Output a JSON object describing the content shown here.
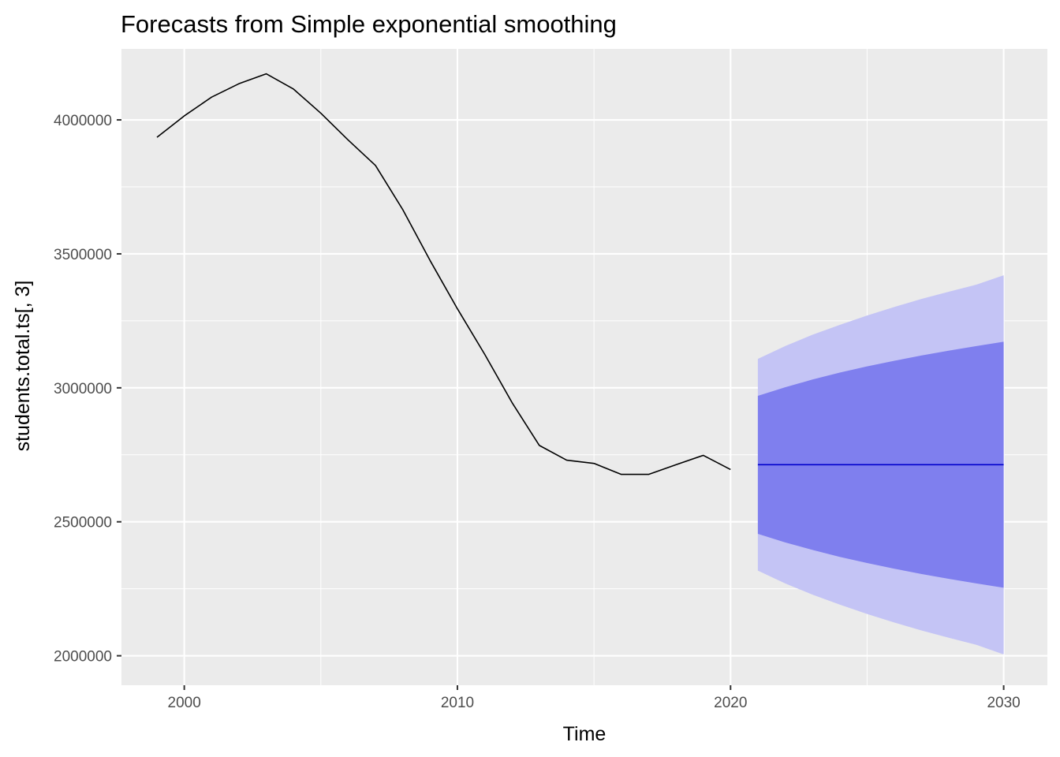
{
  "chart_data": {
    "type": "line",
    "title": "Forecasts from Simple exponential smoothing",
    "xlabel": "Time",
    "ylabel": "students.total.ts[, 3]",
    "xlim": [
      1997.7,
      2031.6
    ],
    "ylim": [
      1890000,
      4265000
    ],
    "x_ticks": [
      2000,
      2010,
      2020,
      2030
    ],
    "x_tick_labels": [
      "2000",
      "2010",
      "2020",
      "2030"
    ],
    "y_ticks": [
      2000000,
      2500000,
      3000000,
      3500000,
      4000000
    ],
    "y_tick_labels": [
      "2000000",
      "2500000",
      "3000000",
      "3500000",
      "4000000"
    ],
    "grid": true,
    "legend": "none",
    "colors": {
      "panel": "#EBEBEB",
      "grid": "#FFFFFF",
      "observed": "#000000",
      "forecast": "#0000CC",
      "band80": "#7F7FEE",
      "band95": "#C4C4F5"
    },
    "series": [
      {
        "role": "observed",
        "x": [
          1999,
          2000,
          2001,
          2002,
          2003,
          2004,
          2005,
          2006,
          2007,
          2008,
          2009,
          2010,
          2011,
          2012,
          2013,
          2014,
          2015,
          2016,
          2017,
          2018,
          2019,
          2020
        ],
        "values": [
          3935000,
          4015000,
          4085000,
          4135000,
          4172000,
          4115000,
          4025000,
          3925000,
          3830000,
          3665000,
          3475000,
          3295000,
          3125000,
          2945000,
          2785000,
          2730000,
          2718000,
          2677000,
          2677000,
          2713000,
          2748000,
          2695000
        ]
      },
      {
        "role": "forecast",
        "x": [
          2021,
          2022,
          2023,
          2024,
          2025,
          2026,
          2027,
          2028,
          2029,
          2030
        ],
        "values": [
          2713000,
          2713000,
          2713000,
          2713000,
          2713000,
          2713000,
          2713000,
          2713000,
          2713000,
          2713000
        ],
        "lo80": [
          2455000,
          2423000,
          2395000,
          2369000,
          2346000,
          2325000,
          2305000,
          2287000,
          2270000,
          2254000
        ],
        "hi80": [
          2970000,
          3002000,
          3031000,
          3057000,
          3080000,
          3101000,
          3121000,
          3139000,
          3156000,
          3172000
        ],
        "lo95": [
          2318000,
          2270000,
          2228000,
          2191000,
          2156000,
          2124000,
          2094000,
          2067000,
          2041000,
          2005000
        ],
        "hi95": [
          3108000,
          3156000,
          3198000,
          3235000,
          3270000,
          3302000,
          3332000,
          3359000,
          3385000,
          3420000
        ]
      }
    ]
  }
}
